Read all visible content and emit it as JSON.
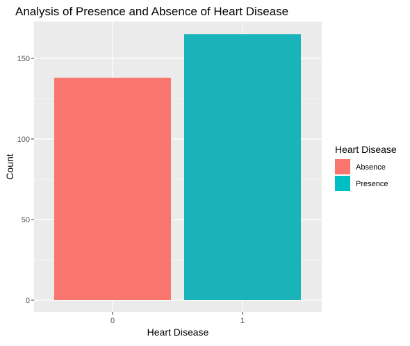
{
  "chart_data": {
    "type": "bar",
    "title": "Analysis of Presence and Absence of Heart Disease",
    "xlabel": "Heart Disease",
    "ylabel": "Count",
    "categories": [
      "0",
      "1"
    ],
    "values": [
      138,
      165
    ],
    "ylim": [
      0,
      170
    ],
    "yticks": [
      0,
      50,
      100,
      150
    ],
    "grid": true,
    "legend": {
      "title": "Heart Disease",
      "position": "right",
      "entries": [
        {
          "label": "Absence",
          "color": "#F8766D"
        },
        {
          "label": "Presence",
          "color": "#00BFC4"
        }
      ]
    },
    "colors": {
      "panel_background": "#EBEBEB",
      "grid_line": "#FFFFFF",
      "absence": "#F8766D",
      "presence": "#1AB3B9",
      "axis_text": "#4D4D4D",
      "title_text": "#000000"
    }
  }
}
